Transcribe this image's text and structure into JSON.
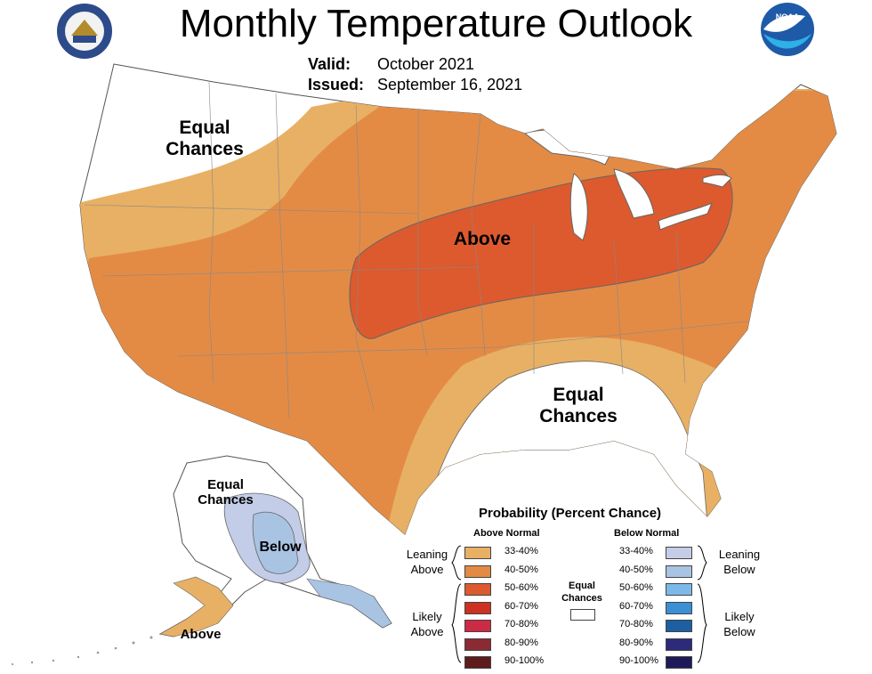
{
  "title": "Monthly Temperature Outlook",
  "valid_label": "Valid:",
  "valid_value": "October 2021",
  "issued_label": "Issued:",
  "issued_value": "September 16, 2021",
  "logos": {
    "left": "department-of-commerce-seal",
    "right": "noaa-logo",
    "noaa_text": "NOAA"
  },
  "map_labels": {
    "nw": "Equal Chances",
    "center": "Above",
    "se": "Equal Chances",
    "ak_top": "Equal Chances",
    "ak_below": "Below",
    "ak_above": "Above"
  },
  "colors": {
    "equal": "#ffffff",
    "leaning_above": "#e8b064",
    "above_40_50": "#e38b45",
    "above_50_60": "#dc5a2e",
    "below_33_40": "#c4cde8",
    "below_40_50": "#a9c3e3"
  },
  "legend": {
    "title": "Probability (Percent Chance)",
    "above_header": "Above Normal",
    "below_header": "Below Normal",
    "equal_label": "Equal Chances",
    "leaning_above": "Leaning Above",
    "likely_above": "Likely Above",
    "leaning_below": "Leaning Below",
    "likely_below": "Likely Below",
    "above": [
      {
        "range": "33-40%",
        "color": "#e8b064"
      },
      {
        "range": "40-50%",
        "color": "#e38b45"
      },
      {
        "range": "50-60%",
        "color": "#dc5a2e"
      },
      {
        "range": "60-70%",
        "color": "#cc3122"
      },
      {
        "range": "70-80%",
        "color": "#cc2a45"
      },
      {
        "range": "80-90%",
        "color": "#8a2a33"
      },
      {
        "range": "90-100%",
        "color": "#5e1c1c"
      }
    ],
    "below": [
      {
        "range": "33-40%",
        "color": "#c4cde8"
      },
      {
        "range": "40-50%",
        "color": "#a9c3e3"
      },
      {
        "range": "50-60%",
        "color": "#7db9e8"
      },
      {
        "range": "60-70%",
        "color": "#3b8fd4"
      },
      {
        "range": "70-80%",
        "color": "#1d5fa3"
      },
      {
        "range": "80-90%",
        "color": "#2d2a7a"
      },
      {
        "range": "90-100%",
        "color": "#1e1a5a"
      }
    ]
  }
}
